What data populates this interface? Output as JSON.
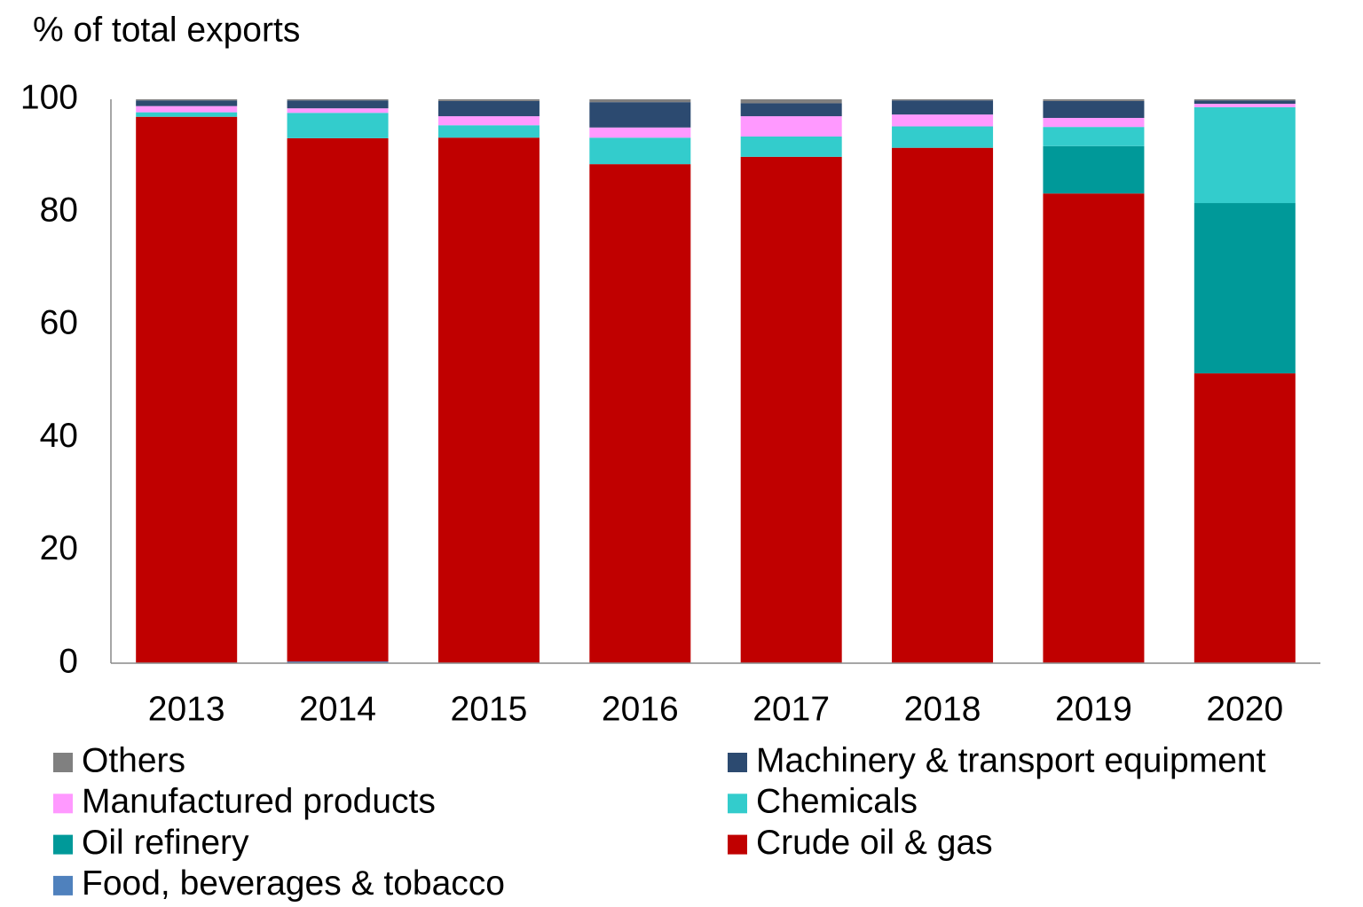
{
  "chart_data": {
    "type": "stacked_bar",
    "y_label": "% of total exports",
    "categories": [
      "2013",
      "2014",
      "2015",
      "2016",
      "2017",
      "2018",
      "2019",
      "2020"
    ],
    "series": [
      {
        "name": "Food, beverages & tobacco",
        "color": "#4f81bd",
        "values": [
          0.1,
          0.3,
          0.1,
          0.1,
          0.1,
          0.1,
          0.1,
          0.1
        ]
      },
      {
        "name": "Crude oil & gas",
        "color": "#c00000",
        "values": [
          96.8,
          92.8,
          93.1,
          88.4,
          89.7,
          91.3,
          83.2,
          51.3
        ]
      },
      {
        "name": "Oil refinery",
        "color": "#009999",
        "values": [
          0,
          0,
          0,
          0,
          0,
          0,
          8.4,
          30.2
        ]
      },
      {
        "name": "Chemicals",
        "color": "#33cccc",
        "values": [
          0.8,
          4.5,
          2.2,
          4.7,
          3.6,
          3.8,
          3.4,
          17.0
        ]
      },
      {
        "name": "Manufactured products",
        "color": "#ff99ff",
        "values": [
          1.1,
          0.8,
          1.6,
          1.8,
          3.6,
          2.1,
          1.6,
          0.6
        ]
      },
      {
        "name": "Machinery & transport equipment",
        "color": "#2c4a70",
        "values": [
          1.0,
          1.4,
          2.7,
          4.5,
          2.3,
          2.5,
          3.0,
          0.6
        ]
      },
      {
        "name": "Others",
        "color": "#808080",
        "values": [
          0.2,
          0.2,
          0.3,
          0.5,
          0.7,
          0.2,
          0.3,
          0.2
        ]
      }
    ],
    "ylim": [
      0,
      100
    ],
    "yticks": [
      0,
      20,
      40,
      60,
      80,
      100
    ],
    "grid": false
  }
}
